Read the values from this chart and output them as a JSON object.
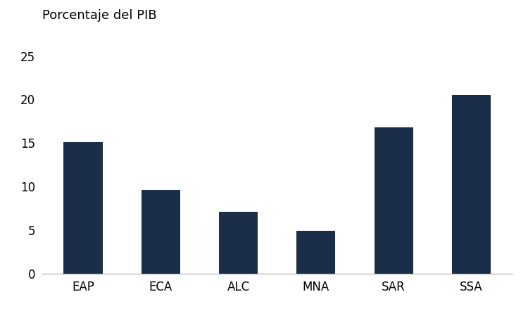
{
  "categories": [
    "EAP",
    "ECA",
    "ALC",
    "MNA",
    "SAR",
    "SSA"
  ],
  "values": [
    15.1,
    9.6,
    7.1,
    4.9,
    16.8,
    20.5
  ],
  "bar_color": "#1a2e4a",
  "ylabel": "Porcentaje del PIB",
  "ylim": [
    0,
    25
  ],
  "yticks": [
    0,
    5,
    10,
    15,
    20,
    25
  ],
  "background_color": "#ffffff",
  "bar_width": 0.5,
  "tick_fontsize": 12,
  "ylabel_fontsize": 13
}
